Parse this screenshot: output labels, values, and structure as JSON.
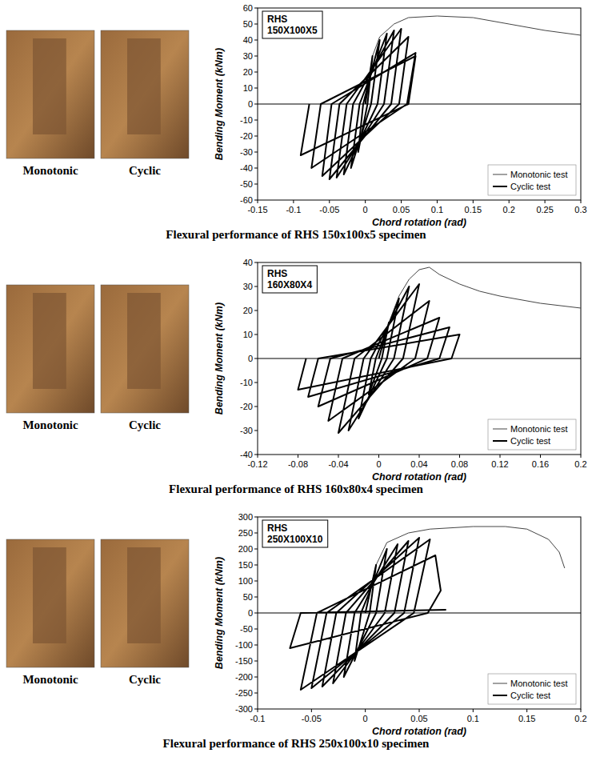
{
  "chart_data": [
    {
      "type": "line",
      "title": "RHS 150X100X5",
      "caption": "Flexural performance of RHS 150x100x5 specimen",
      "photo_captions": [
        "Monotonic",
        "Cyclic"
      ],
      "x_label": "Chord rotation (rad)",
      "y_label": "Bending Moment (kNm)",
      "xlim": [
        -0.15,
        0.3
      ],
      "xticks": [
        -0.15,
        -0.1,
        -0.05,
        0,
        0.05,
        0.1,
        0.15,
        0.2,
        0.25,
        0.3
      ],
      "ylim": [
        -60,
        60
      ],
      "yticks": [
        -60,
        -50,
        -40,
        -30,
        -20,
        -10,
        0,
        10,
        20,
        30,
        40,
        50,
        60
      ],
      "grid": false,
      "legend": "lower right",
      "series": [
        {
          "name": "Monotonic test",
          "color": "#444444",
          "line_style": "thin",
          "x": [
            0,
            0.01,
            0.02,
            0.04,
            0.06,
            0.1,
            0.15,
            0.2,
            0.25,
            0.3
          ],
          "values": [
            0,
            30,
            42,
            50,
            54,
            55,
            54,
            50,
            46,
            43
          ]
        },
        {
          "name": "Cyclic test",
          "color": "#000000",
          "line_style": "thick",
          "x": [
            0,
            0.01,
            0.003,
            -0.01,
            -0.003,
            0.02,
            0.008,
            -0.02,
            -0.008,
            0.03,
            0.017,
            -0.03,
            -0.017,
            0.04,
            0.026,
            -0.04,
            -0.026,
            0.05,
            0.036,
            -0.05,
            -0.036,
            0.06,
            0.047,
            -0.06,
            -0.047,
            0.07,
            0.058,
            -0.075,
            -0.062,
            0.07,
            0.06,
            -0.09,
            -0.078
          ],
          "values": [
            0,
            30,
            0,
            -30,
            0,
            40,
            0,
            -40,
            0,
            44,
            0,
            -44,
            0,
            46,
            0,
            -46,
            0,
            47,
            0,
            -47,
            0,
            42,
            0,
            -45,
            0,
            32,
            0,
            -40,
            0,
            30,
            0,
            -32,
            0
          ]
        }
      ]
    },
    {
      "type": "line",
      "title": "RHS 160X80X4",
      "caption": "Flexural performance of RHS 160x80x4 specimen",
      "photo_captions": [
        "Monotonic",
        "Cyclic"
      ],
      "x_label": "Chord rotation (rad)",
      "y_label": "Bending Moment (kNm)",
      "xlim": [
        -0.12,
        0.2
      ],
      "xticks": [
        -0.12,
        -0.08,
        -0.04,
        0,
        0.04,
        0.08,
        0.12,
        0.16,
        0.2
      ],
      "ylim": [
        -40,
        40
      ],
      "yticks": [
        -40,
        -30,
        -20,
        -10,
        0,
        10,
        20,
        30,
        40
      ],
      "grid": false,
      "legend": "lower right",
      "series": [
        {
          "name": "Monotonic test",
          "color": "#444444",
          "line_style": "thin",
          "x": [
            0,
            0.01,
            0.02,
            0.03,
            0.04,
            0.05,
            0.06,
            0.08,
            0.1,
            0.12,
            0.16,
            0.2
          ],
          "values": [
            0,
            15,
            26,
            33,
            37,
            38,
            35,
            31,
            28,
            26,
            23,
            21
          ]
        },
        {
          "name": "Cyclic test",
          "color": "#000000",
          "line_style": "thick",
          "x": [
            0,
            0.01,
            0.003,
            -0.01,
            -0.003,
            0.02,
            0.008,
            -0.02,
            -0.008,
            0.03,
            0.015,
            -0.03,
            -0.015,
            0.04,
            0.024,
            -0.04,
            -0.024,
            0.05,
            0.036,
            -0.05,
            -0.036,
            0.06,
            0.048,
            -0.06,
            -0.048,
            0.07,
            0.06,
            -0.07,
            -0.06,
            0.08,
            0.072,
            -0.08,
            -0.072
          ],
          "values": [
            0,
            15,
            0,
            -15,
            0,
            25,
            0,
            -25,
            0,
            30,
            0,
            -30,
            0,
            31,
            0,
            -31,
            0,
            24,
            0,
            -26,
            0,
            17,
            0,
            -20,
            0,
            13,
            0,
            -16,
            0,
            10,
            0,
            -13,
            0
          ]
        }
      ]
    },
    {
      "type": "line",
      "title": "RHS 250X100X10",
      "caption": "Flexural performance of RHS 250x100x10 specimen",
      "photo_captions": [
        "Monotonic",
        "Cyclic"
      ],
      "x_label": "Chord rotation (rad)",
      "y_label": "Bending Moment (kNm)",
      "xlim": [
        -0.1,
        0.2
      ],
      "xticks": [
        -0.1,
        -0.05,
        0,
        0.05,
        0.1,
        0.15,
        0.2
      ],
      "ylim": [
        -300,
        300
      ],
      "yticks": [
        -300,
        -250,
        -200,
        -150,
        -100,
        -50,
        0,
        50,
        100,
        150,
        200,
        250,
        300
      ],
      "grid": false,
      "legend": "lower right",
      "series": [
        {
          "name": "Monotonic test",
          "color": "#444444",
          "line_style": "thin",
          "x": [
            0,
            0.01,
            0.02,
            0.04,
            0.06,
            0.1,
            0.13,
            0.15,
            0.17,
            0.18,
            0.185
          ],
          "values": [
            0,
            150,
            220,
            250,
            262,
            270,
            270,
            262,
            230,
            190,
            140
          ]
        },
        {
          "name": "Cyclic test",
          "color": "#000000",
          "line_style": "thick",
          "x": [
            0,
            0.01,
            0.004,
            -0.01,
            -0.004,
            0.02,
            0.01,
            -0.02,
            -0.01,
            0.03,
            0.018,
            -0.03,
            -0.018,
            0.04,
            0.027,
            -0.04,
            -0.027,
            0.05,
            0.036,
            -0.05,
            -0.036,
            0.06,
            0.045,
            -0.06,
            -0.045,
            0.065,
            0.07,
            0.058,
            -0.07,
            -0.06,
            0.075
          ],
          "values": [
            0,
            150,
            0,
            -150,
            0,
            200,
            0,
            -200,
            0,
            215,
            0,
            -220,
            0,
            225,
            0,
            -230,
            0,
            235,
            0,
            -235,
            0,
            230,
            0,
            -240,
            0,
            180,
            70,
            0,
            -110,
            0,
            10
          ]
        }
      ]
    }
  ]
}
